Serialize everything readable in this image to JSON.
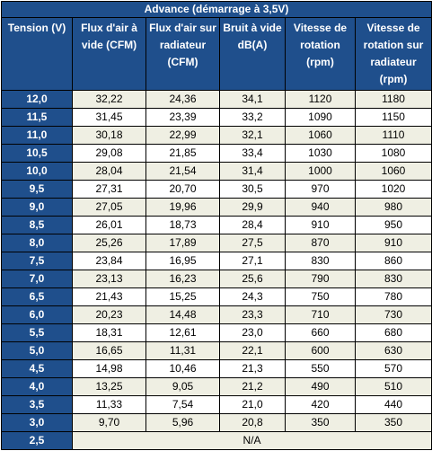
{
  "table": {
    "title": "Advance (démarrage à 3,5V)",
    "headers": [
      "Tension (V)",
      "Flux d'air à vide (CFM)",
      "Flux d'air sur radiateur (CFM)",
      "Bruit à vide dB(A)",
      "Vitesse de rotation (rpm)",
      "Vitesse de rotation sur radiateur (rpm)"
    ],
    "rows": [
      [
        "12,0",
        "32,22",
        "24,36",
        "34,1",
        "1120",
        "1180"
      ],
      [
        "11,5",
        "31,45",
        "23,39",
        "33,2",
        "1090",
        "1150"
      ],
      [
        "11,0",
        "30,18",
        "22,99",
        "32,1",
        "1060",
        "1110"
      ],
      [
        "10,5",
        "29,08",
        "21,85",
        "33,4",
        "1030",
        "1080"
      ],
      [
        "10,0",
        "28,04",
        "21,54",
        "31,4",
        "1000",
        "1060"
      ],
      [
        "9,5",
        "27,31",
        "20,70",
        "30,5",
        "970",
        "1020"
      ],
      [
        "9,0",
        "27,05",
        "19,96",
        "29,9",
        "940",
        "980"
      ],
      [
        "8,5",
        "26,01",
        "18,73",
        "28,4",
        "910",
        "950"
      ],
      [
        "8,0",
        "25,26",
        "17,89",
        "27,5",
        "870",
        "910"
      ],
      [
        "7,5",
        "23,84",
        "16,95",
        "27,1",
        "830",
        "860"
      ],
      [
        "7,0",
        "23,13",
        "16,23",
        "25,6",
        "790",
        "830"
      ],
      [
        "6,5",
        "21,43",
        "15,25",
        "24,3",
        "750",
        "780"
      ],
      [
        "6,0",
        "20,23",
        "14,48",
        "23,3",
        "710",
        "730"
      ],
      [
        "5,5",
        "18,31",
        "12,61",
        "23,0",
        "660",
        "680"
      ],
      [
        "5,0",
        "16,65",
        "11,31",
        "22,1",
        "600",
        "630"
      ],
      [
        "4,5",
        "14,98",
        "10,46",
        "21,3",
        "550",
        "570"
      ],
      [
        "4,0",
        "13,25",
        "9,05",
        "21,2",
        "490",
        "510"
      ],
      [
        "3,5",
        "11,33",
        "7,54",
        "21,0",
        "420",
        "440"
      ],
      [
        "3,0",
        "9,70",
        "5,96",
        "20,8",
        "350",
        "350"
      ]
    ],
    "last_row": {
      "tension": "2,5",
      "value": "N/A"
    }
  }
}
